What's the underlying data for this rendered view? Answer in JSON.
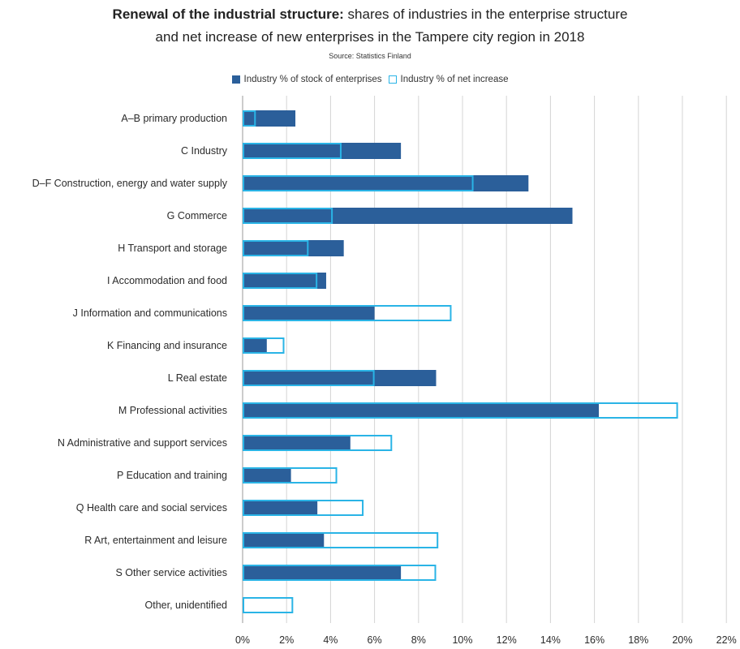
{
  "colors": {
    "stock": "#2b5f9a",
    "net": "#2ab4e6",
    "grid": "#d4d4d4"
  },
  "chart_data": {
    "type": "bar",
    "orientation": "horizontal",
    "title_bold": "Renewal of the industrial structure:",
    "title_rest": " shares of industries in the enterprise structure",
    "title_line2": "and net increase of new enterprises in the Tampere city region in 2018",
    "source": "Source: Statistics Finland",
    "legend_position": "top",
    "grid": true,
    "xlim": [
      0,
      22
    ],
    "xticks": [
      "0%",
      "2%",
      "4%",
      "6%",
      "8%",
      "10%",
      "12%",
      "14%",
      "16%",
      "18%",
      "20%",
      "22%"
    ],
    "categories": [
      "A–B primary production",
      "C Industry",
      "D–F Construction, energy and water supply",
      "G Commerce",
      "H Transport and storage",
      "I Accommodation and food",
      "J Information and communications",
      "K Financing and insurance",
      "L Real estate",
      "M Professional activities",
      "N Administrative and support services",
      "P Education and training",
      "Q Health care and social services",
      "R Art, entertainment and leisure",
      "S Other service activities",
      "Other, unidentified"
    ],
    "series": [
      {
        "name": "Industry % of stock of enterprises",
        "style": "filled",
        "values": [
          2.4,
          7.2,
          13.0,
          15.0,
          4.6,
          3.8,
          6.0,
          1.1,
          8.8,
          16.2,
          4.9,
          2.2,
          3.4,
          3.7,
          7.2,
          0
        ]
      },
      {
        "name": "Industry % of net increase",
        "style": "outline",
        "values": [
          0.6,
          4.5,
          10.5,
          4.1,
          3.0,
          3.4,
          9.5,
          1.9,
          6.0,
          19.8,
          6.8,
          4.3,
          5.5,
          8.9,
          8.8,
          2.3
        ]
      }
    ]
  }
}
